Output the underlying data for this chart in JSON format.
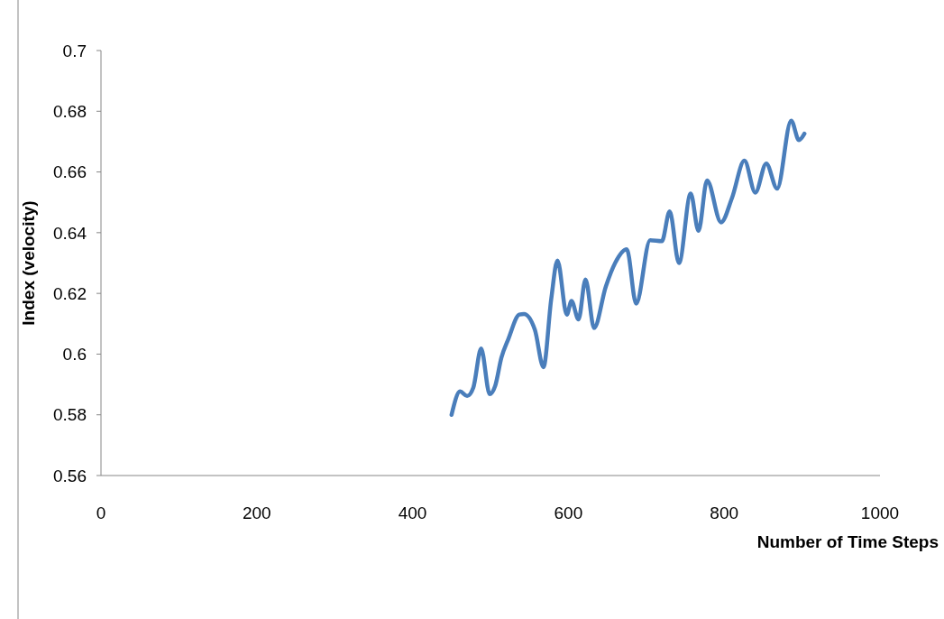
{
  "chart_data": {
    "type": "line",
    "xlabel": "Number of Time Steps",
    "ylabel": "Index (velocity)",
    "xlim": [
      0,
      1000
    ],
    "xticks": [
      0,
      200,
      400,
      600,
      800,
      1000
    ],
    "ylim": [
      0.56,
      0.7
    ],
    "yticks": [
      0.56,
      0.58,
      0.6,
      0.62,
      0.64,
      0.66,
      0.68,
      0.7
    ],
    "grid": false,
    "marker": "none",
    "line_style": "solid",
    "series": [
      {
        "color": "#4a7ebb",
        "x": [
          450,
          461,
          470,
          478,
          488,
          499,
          506,
          514,
          523,
          537,
          543,
          557,
          568,
          578,
          586,
          598,
          604,
          613,
          622,
          633,
          648,
          660,
          675,
          687,
          705,
          720,
          730,
          742,
          757,
          767,
          778,
          796,
          810,
          826,
          840,
          854,
          868,
          886,
          896,
          903
        ],
        "values": [
          0.58,
          0.5877,
          0.5862,
          0.589,
          0.6018,
          0.5868,
          0.5895,
          0.5988,
          0.605,
          0.613,
          0.6132,
          0.608,
          0.5957,
          0.6182,
          0.6308,
          0.613,
          0.6175,
          0.6114,
          0.6246,
          0.6086,
          0.6222,
          0.63,
          0.6345,
          0.6166,
          0.6375,
          0.6372,
          0.647,
          0.63,
          0.6529,
          0.6406,
          0.6572,
          0.6434,
          0.6514,
          0.6637,
          0.6532,
          0.6628,
          0.6545,
          0.6769,
          0.6705,
          0.6726
        ]
      }
    ]
  }
}
